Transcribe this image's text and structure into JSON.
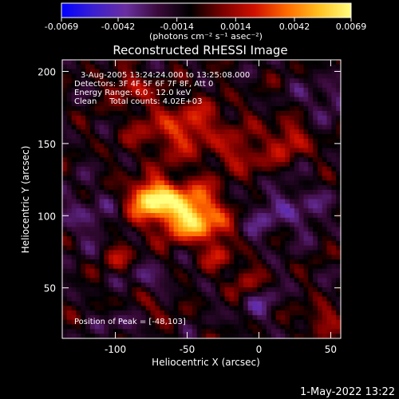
{
  "chart_data": {
    "type": "heatmap",
    "title": "Reconstructed RHESSI Image",
    "colorbar": {
      "ticks": [
        "-0.0069",
        "-0.0042",
        "-0.0014",
        "0.0014",
        "0.0042",
        "0.0069"
      ],
      "range": [
        -0.0069,
        0.0069
      ],
      "unit_label": "(photons cm⁻² s⁻¹ asec⁻²)",
      "colors": [
        "#0000ff",
        "#3b1fd0",
        "#6a2fa0",
        "#3a0a3a",
        "#000000",
        "#7a0000",
        "#d01000",
        "#ff6a00",
        "#ffc020",
        "#ffff80"
      ]
    },
    "xlabel": "Heliocentric X (arcsec)",
    "ylabel": "Heliocentric Y (arcsec)",
    "xlim": [
      -137,
      57
    ],
    "ylim": [
      15,
      208
    ],
    "xticks": [
      "-100",
      "-50",
      "0",
      "50"
    ],
    "xtick_values": [
      -100,
      -50,
      0,
      50
    ],
    "yticks": [
      "50",
      "100",
      "150",
      "200"
    ],
    "ytick_values": [
      50,
      100,
      150,
      200
    ],
    "annotations": [
      "3-Aug-2005 13:24:24.000 to 13:25:08.000",
      "Detectors: 3F 4F 5F 6F 7F 8F, Att 0",
      "Energy Range: 6.0 - 12.0 keV",
      "Clean     Total counts: 4.02E+03"
    ],
    "peak_label": "Position of Peak = [-48,103]",
    "peak": [
      -48,
      103
    ],
    "sources": [
      {
        "x": -55,
        "y": 106,
        "sx": 20,
        "sy": 12,
        "amp": 0.0062
      },
      {
        "x": -76,
        "y": 113,
        "sx": 10,
        "sy": 8,
        "amp": 0.0048
      },
      {
        "x": -40,
        "y": 92,
        "sx": 14,
        "sy": 9,
        "amp": 0.0036
      },
      {
        "x": -52,
        "y": 160,
        "sx": 24,
        "sy": 14,
        "amp": 0.0034
      },
      {
        "x": -90,
        "y": 190,
        "sx": 9,
        "sy": 7,
        "amp": 0.003
      },
      {
        "x": -10,
        "y": 140,
        "sx": 9,
        "sy": 8,
        "amp": 0.0026
      },
      {
        "x": 20,
        "y": 152,
        "sx": 12,
        "sy": 10,
        "amp": 0.0028
      },
      {
        "x": -96,
        "y": 70,
        "sx": 8,
        "sy": 8,
        "amp": 0.0022
      },
      {
        "x": -10,
        "y": 55,
        "sx": 9,
        "sy": 8,
        "amp": 0.0024
      },
      {
        "x": -75,
        "y": 40,
        "sx": 9,
        "sy": 7,
        "amp": 0.002
      },
      {
        "x": 42,
        "y": 28,
        "sx": 10,
        "sy": 8,
        "amp": 0.0022
      },
      {
        "x": -28,
        "y": 72,
        "sx": 7,
        "sy": 6,
        "amp": 0.0025
      },
      {
        "x": -95,
        "y": 25,
        "sx": 8,
        "sy": 6,
        "amp": -0.002
      },
      {
        "x": -120,
        "y": 100,
        "sx": 14,
        "sy": 14,
        "amp": -0.0018
      },
      {
        "x": 0,
        "y": 100,
        "sx": 12,
        "sy": 12,
        "amp": -0.0018
      },
      {
        "x": 30,
        "y": 105,
        "sx": 12,
        "sy": 12,
        "amp": -0.002
      },
      {
        "x": 45,
        "y": 180,
        "sx": 12,
        "sy": 10,
        "amp": -0.0018
      },
      {
        "x": -78,
        "y": 55,
        "sx": 10,
        "sy": 8,
        "amp": -0.0024
      },
      {
        "x": 0,
        "y": 40,
        "sx": 12,
        "sy": 10,
        "amp": -0.0016
      }
    ]
  },
  "timestamp": "1-May-2022 13:22"
}
